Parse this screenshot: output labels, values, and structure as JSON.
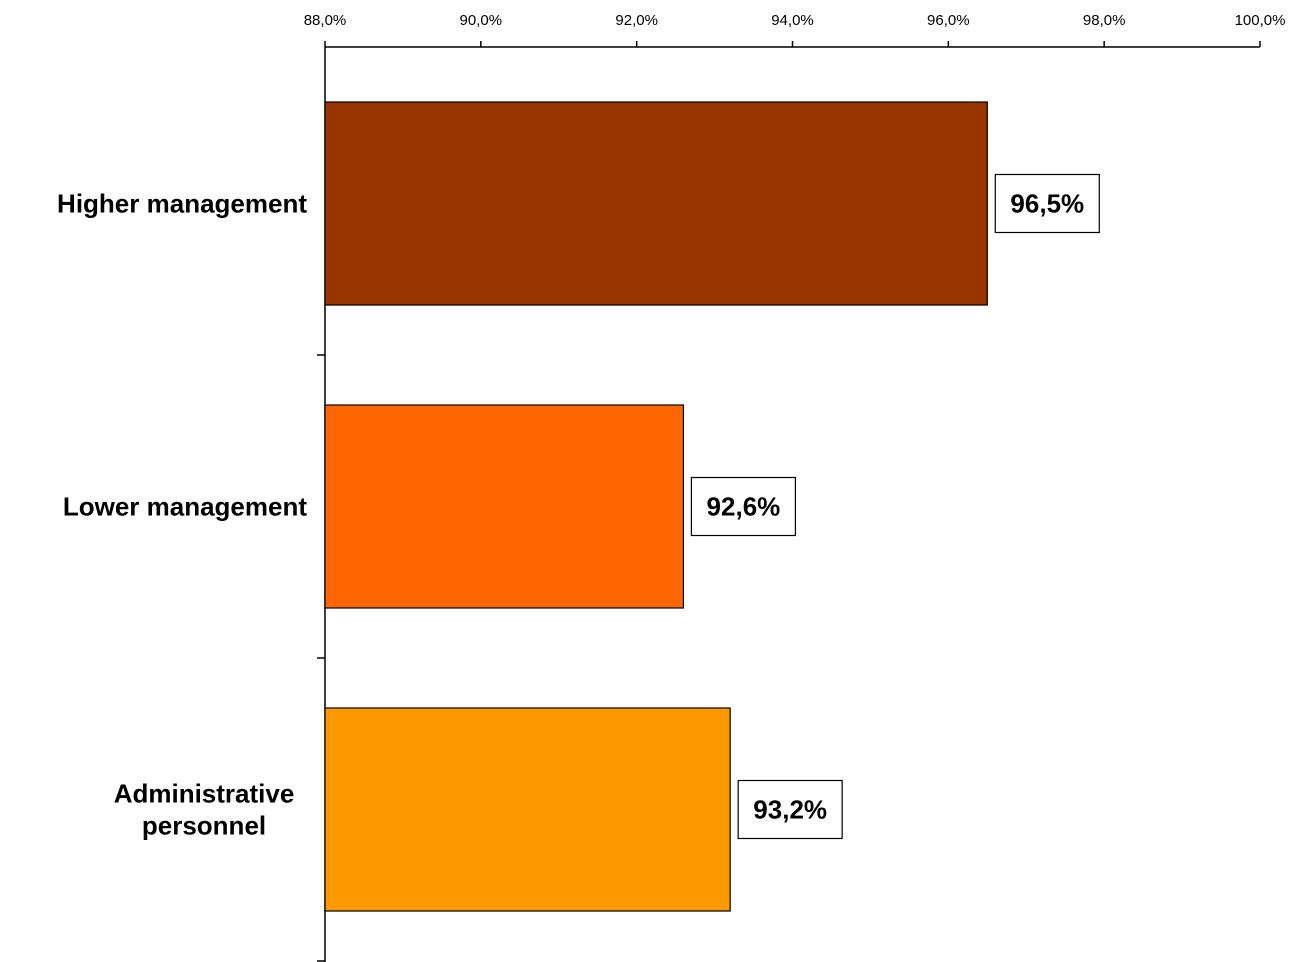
{
  "chart_data": {
    "type": "bar",
    "orientation": "horizontal",
    "categories": [
      [
        "Higher management"
      ],
      [
        "Lower management"
      ],
      [
        "Administrative",
        "personnel"
      ]
    ],
    "values": [
      96.5,
      92.6,
      93.2
    ],
    "data_labels": [
      "96,5%",
      "92,6%",
      "93,2%"
    ],
    "colors": [
      "#993300",
      "#FF6600",
      "#FF9900"
    ],
    "xlim": [
      88,
      100
    ],
    "xticks": [
      88,
      90,
      92,
      94,
      96,
      98,
      100
    ],
    "xtick_labels": [
      "88,0%",
      "90,0%",
      "92,0%",
      "94,0%",
      "96,0%",
      "98,0%",
      "100,0%"
    ],
    "x_axis_position": "top",
    "grid": false,
    "legend": false,
    "title": "",
    "xlabel": "",
    "ylabel": ""
  }
}
